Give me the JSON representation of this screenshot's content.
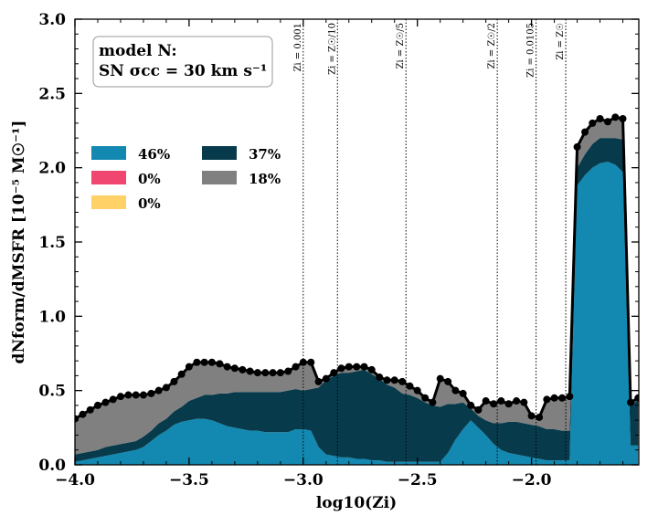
{
  "chart_data": {
    "type": "area",
    "annotation": [
      "model N:",
      "SN σcc = 30 km s⁻¹"
    ],
    "xlabel": "log10(Zi)",
    "ylabel": "dNform/dMSFR [10⁻⁵ M☉⁻¹]",
    "xlim": [
      -4.0,
      -1.53
    ],
    "ylim": [
      0.0,
      3.0
    ],
    "xticks": [
      -4.0,
      -3.5,
      -3.0,
      -2.5,
      -2.0
    ],
    "xtick_labels": [
      "−4.0",
      "−3.5",
      "−3.0",
      "−2.5",
      "−2.0"
    ],
    "yticks": [
      0.0,
      0.5,
      1.0,
      1.5,
      2.0,
      2.5,
      3.0
    ],
    "ytick_labels": [
      "0.0",
      "0.5",
      "1.0",
      "1.5",
      "2.0",
      "2.5",
      "3.0"
    ],
    "grid": false,
    "legend_placement": "center-left",
    "legend": [
      {
        "label": "46%",
        "color": "#1388b0"
      },
      {
        "label": "0%",
        "color": "#ef476f"
      },
      {
        "label": "0%",
        "color": "#ffd166"
      },
      {
        "label": "37%",
        "color": "#073b4c"
      },
      {
        "label": "18%",
        "color": "#808080"
      }
    ],
    "vertical_lines": [
      {
        "x": -3.0,
        "label": "Zi = 0.001"
      },
      {
        "x": -2.85,
        "label": "Zi = Z☉/10"
      },
      {
        "x": -2.55,
        "label": "Zi = Z☉/5"
      },
      {
        "x": -2.15,
        "label": "Zi = Z☉/2"
      },
      {
        "x": -1.98,
        "label": "Zi = 0.0105"
      },
      {
        "x": -1.85,
        "label": "Zi = Z☉"
      }
    ],
    "x": [
      -4.0,
      -3.966,
      -3.933,
      -3.9,
      -3.866,
      -3.833,
      -3.8,
      -3.766,
      -3.733,
      -3.7,
      -3.666,
      -3.633,
      -3.6,
      -3.566,
      -3.533,
      -3.5,
      -3.466,
      -3.433,
      -3.4,
      -3.366,
      -3.333,
      -3.3,
      -3.266,
      -3.233,
      -3.2,
      -3.166,
      -3.133,
      -3.1,
      -3.066,
      -3.033,
      -3.0,
      -2.966,
      -2.933,
      -2.9,
      -2.866,
      -2.833,
      -2.8,
      -2.766,
      -2.733,
      -2.7,
      -2.666,
      -2.633,
      -2.6,
      -2.566,
      -2.533,
      -2.5,
      -2.466,
      -2.433,
      -2.4,
      -2.366,
      -2.333,
      -2.3,
      -2.266,
      -2.233,
      -2.2,
      -2.166,
      -2.133,
      -2.1,
      -2.066,
      -2.033,
      -2.0,
      -1.966,
      -1.933,
      -1.9,
      -1.866,
      -1.833,
      -1.8,
      -1.766,
      -1.733,
      -1.7,
      -1.666,
      -1.633,
      -1.6,
      -1.566,
      -1.533
    ],
    "series": [
      {
        "name": "46%",
        "color": "#1388b0",
        "values": [
          0.02,
          0.03,
          0.04,
          0.05,
          0.06,
          0.07,
          0.08,
          0.09,
          0.1,
          0.12,
          0.16,
          0.2,
          0.23,
          0.27,
          0.29,
          0.3,
          0.31,
          0.31,
          0.3,
          0.28,
          0.26,
          0.25,
          0.24,
          0.23,
          0.23,
          0.22,
          0.22,
          0.22,
          0.22,
          0.24,
          0.24,
          0.23,
          0.12,
          0.07,
          0.06,
          0.05,
          0.05,
          0.04,
          0.04,
          0.03,
          0.03,
          0.02,
          0.02,
          0.02,
          0.02,
          0.02,
          0.02,
          0.02,
          0.02,
          0.08,
          0.17,
          0.24,
          0.3,
          0.25,
          0.2,
          0.14,
          0.1,
          0.08,
          0.07,
          0.06,
          0.05,
          0.04,
          0.03,
          0.03,
          0.03,
          0.03,
          1.88,
          1.95,
          2.0,
          2.03,
          2.04,
          2.02,
          1.97,
          0.13,
          0.13
        ]
      },
      {
        "name": "0%",
        "color": "#ef476f",
        "values": [
          0,
          0,
          0,
          0,
          0,
          0,
          0,
          0,
          0,
          0,
          0,
          0,
          0,
          0,
          0,
          0,
          0,
          0,
          0,
          0,
          0,
          0,
          0,
          0,
          0,
          0,
          0,
          0,
          0,
          0,
          0,
          0,
          0,
          0,
          0,
          0,
          0,
          0,
          0,
          0,
          0,
          0,
          0,
          0,
          0,
          0,
          0,
          0,
          0,
          0,
          0,
          0,
          0,
          0,
          0,
          0,
          0,
          0,
          0,
          0,
          0,
          0,
          0,
          0,
          0,
          0,
          0,
          0,
          0,
          0,
          0,
          0,
          0,
          0,
          0
        ]
      },
      {
        "name": "0%",
        "color": "#ffd166",
        "values": [
          0,
          0,
          0,
          0,
          0,
          0,
          0,
          0,
          0,
          0,
          0,
          0,
          0,
          0,
          0,
          0,
          0,
          0,
          0,
          0,
          0,
          0,
          0,
          0,
          0,
          0,
          0,
          0,
          0,
          0,
          0,
          0,
          0,
          0,
          0,
          0,
          0,
          0,
          0,
          0,
          0,
          0,
          0,
          0,
          0,
          0,
          0,
          0,
          0,
          0,
          0,
          0,
          0,
          0,
          0,
          0,
          0,
          0,
          0,
          0,
          0,
          0,
          0,
          0,
          0,
          0,
          0,
          0,
          0,
          0,
          0,
          0,
          0,
          0,
          0
        ]
      },
      {
        "name": "37%",
        "color": "#073b4c",
        "values": [
          0.05,
          0.05,
          0.05,
          0.05,
          0.06,
          0.06,
          0.06,
          0.06,
          0.06,
          0.07,
          0.07,
          0.08,
          0.08,
          0.09,
          0.1,
          0.13,
          0.14,
          0.16,
          0.17,
          0.2,
          0.22,
          0.24,
          0.25,
          0.26,
          0.26,
          0.27,
          0.27,
          0.27,
          0.28,
          0.27,
          0.26,
          0.28,
          0.4,
          0.5,
          0.54,
          0.57,
          0.57,
          0.59,
          0.6,
          0.58,
          0.55,
          0.52,
          0.5,
          0.46,
          0.45,
          0.43,
          0.4,
          0.38,
          0.37,
          0.33,
          0.24,
          0.18,
          0.08,
          0.08,
          0.1,
          0.14,
          0.18,
          0.21,
          0.22,
          0.22,
          0.22,
          0.22,
          0.21,
          0.21,
          0.2,
          0.2,
          0.12,
          0.14,
          0.16,
          0.17,
          0.16,
          0.18,
          0.22,
          0.28,
          0.3
        ]
      },
      {
        "name": "18%",
        "color": "#808080",
        "values": [
          0.24,
          0.26,
          0.28,
          0.3,
          0.3,
          0.31,
          0.32,
          0.32,
          0.31,
          0.28,
          0.25,
          0.22,
          0.21,
          0.2,
          0.22,
          0.23,
          0.24,
          0.22,
          0.22,
          0.2,
          0.18,
          0.16,
          0.15,
          0.14,
          0.13,
          0.13,
          0.13,
          0.13,
          0.13,
          0.15,
          0.19,
          0.18,
          0.04,
          0.01,
          0.02,
          0.03,
          0.04,
          0.03,
          0.02,
          0.03,
          0.01,
          0.03,
          0.05,
          0.08,
          0.06,
          0.05,
          0.03,
          0.02,
          0.19,
          0.15,
          0.09,
          0.06,
          0.02,
          0.04,
          0.13,
          0.13,
          0.15,
          0.12,
          0.14,
          0.14,
          0.06,
          0.06,
          0.2,
          0.21,
          0.22,
          0.23,
          0.14,
          0.15,
          0.14,
          0.13,
          0.11,
          0.14,
          0.14,
          0.01,
          0.02
        ]
      }
    ],
    "total": [
      0.31,
      0.34,
      0.37,
      0.4,
      0.42,
      0.44,
      0.46,
      0.47,
      0.47,
      0.47,
      0.48,
      0.5,
      0.52,
      0.56,
      0.61,
      0.66,
      0.69,
      0.69,
      0.69,
      0.68,
      0.66,
      0.65,
      0.64,
      0.63,
      0.62,
      0.62,
      0.62,
      0.62,
      0.63,
      0.66,
      0.69,
      0.69,
      0.56,
      0.58,
      0.62,
      0.65,
      0.66,
      0.66,
      0.66,
      0.64,
      0.59,
      0.57,
      0.57,
      0.56,
      0.53,
      0.5,
      0.45,
      0.42,
      0.58,
      0.56,
      0.5,
      0.48,
      0.4,
      0.37,
      0.43,
      0.41,
      0.43,
      0.41,
      0.43,
      0.42,
      0.33,
      0.32,
      0.44,
      0.45,
      0.45,
      0.46,
      2.14,
      2.24,
      2.3,
      2.33,
      2.31,
      2.34,
      2.33,
      0.42,
      0.45
    ]
  }
}
